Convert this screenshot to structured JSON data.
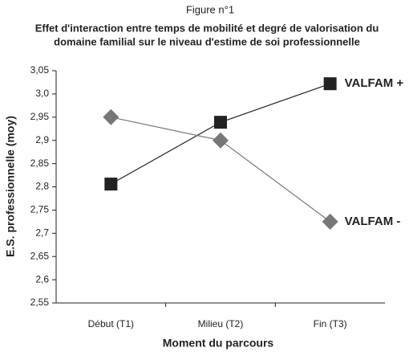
{
  "chart_data": {
    "type": "line",
    "title": "Figure n°1",
    "subtitle": [
      "Effet d'interaction entre temps de mobilité et degré de valorisation du",
      "domaine familial sur le niveau d'estime de soi professionnelle"
    ],
    "x_label": "Moment du parcours",
    "y_label": "E.S. professionnelle (moy)",
    "categories": [
      "Début (T1)",
      "Milieu (T2)",
      "Fin (T3)"
    ],
    "series": [
      {
        "name": "VALFAM +",
        "color": "#222222",
        "marker": "square",
        "values": [
          2.806,
          2.939,
          3.022
        ]
      },
      {
        "name": "VALFAM -",
        "color": "#777777",
        "marker": "diamond",
        "values": [
          2.95,
          2.9,
          2.725
        ]
      }
    ],
    "ylim": [
      2.55,
      3.05
    ],
    "yticks": [
      {
        "value": 2.55,
        "label": "2,55"
      },
      {
        "value": 2.6,
        "label": "2,6"
      },
      {
        "value": 2.65,
        "label": "2,65"
      },
      {
        "value": 2.7,
        "label": "2,7"
      },
      {
        "value": 2.75,
        "label": "2,75"
      },
      {
        "value": 2.8,
        "label": "2,8"
      },
      {
        "value": 2.85,
        "label": "2,85"
      },
      {
        "value": 2.9,
        "label": "2,9"
      },
      {
        "value": 2.95,
        "label": "2,95"
      },
      {
        "value": 3.0,
        "label": "3,0"
      },
      {
        "value": 3.05,
        "label": "3,05"
      }
    ],
    "grid": false
  }
}
